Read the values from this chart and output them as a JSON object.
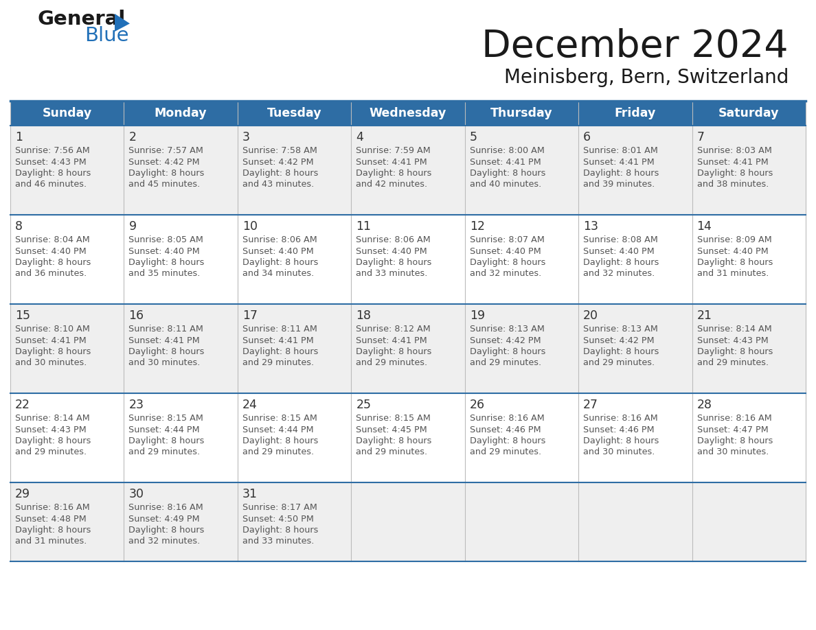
{
  "title": "December 2024",
  "subtitle": "Meinisberg, Bern, Switzerland",
  "header_bg": "#2E6DA4",
  "header_text": "#FFFFFF",
  "weekdays": [
    "Sunday",
    "Monday",
    "Tuesday",
    "Wednesday",
    "Thursday",
    "Friday",
    "Saturday"
  ],
  "row_bg_odd": "#EFEFEF",
  "row_bg_even": "#FFFFFF",
  "row_separator": "#2E6DA4",
  "col_separator": "#AAAAAA",
  "day_number_color": "#333333",
  "cell_text_color": "#555555",
  "logo_black": "#1a1a1a",
  "logo_blue": "#2170B8",
  "days": [
    {
      "day": 1,
      "col": 0,
      "row": 0,
      "sunrise": "7:56 AM",
      "sunset": "4:43 PM",
      "dl_suffix": "46 minutes."
    },
    {
      "day": 2,
      "col": 1,
      "row": 0,
      "sunrise": "7:57 AM",
      "sunset": "4:42 PM",
      "dl_suffix": "45 minutes."
    },
    {
      "day": 3,
      "col": 2,
      "row": 0,
      "sunrise": "7:58 AM",
      "sunset": "4:42 PM",
      "dl_suffix": "43 minutes."
    },
    {
      "day": 4,
      "col": 3,
      "row": 0,
      "sunrise": "7:59 AM",
      "sunset": "4:41 PM",
      "dl_suffix": "42 minutes."
    },
    {
      "day": 5,
      "col": 4,
      "row": 0,
      "sunrise": "8:00 AM",
      "sunset": "4:41 PM",
      "dl_suffix": "40 minutes."
    },
    {
      "day": 6,
      "col": 5,
      "row": 0,
      "sunrise": "8:01 AM",
      "sunset": "4:41 PM",
      "dl_suffix": "39 minutes."
    },
    {
      "day": 7,
      "col": 6,
      "row": 0,
      "sunrise": "8:03 AM",
      "sunset": "4:41 PM",
      "dl_suffix": "38 minutes."
    },
    {
      "day": 8,
      "col": 0,
      "row": 1,
      "sunrise": "8:04 AM",
      "sunset": "4:40 PM",
      "dl_suffix": "36 minutes."
    },
    {
      "day": 9,
      "col": 1,
      "row": 1,
      "sunrise": "8:05 AM",
      "sunset": "4:40 PM",
      "dl_suffix": "35 minutes."
    },
    {
      "day": 10,
      "col": 2,
      "row": 1,
      "sunrise": "8:06 AM",
      "sunset": "4:40 PM",
      "dl_suffix": "34 minutes."
    },
    {
      "day": 11,
      "col": 3,
      "row": 1,
      "sunrise": "8:06 AM",
      "sunset": "4:40 PM",
      "dl_suffix": "33 minutes."
    },
    {
      "day": 12,
      "col": 4,
      "row": 1,
      "sunrise": "8:07 AM",
      "sunset": "4:40 PM",
      "dl_suffix": "32 minutes."
    },
    {
      "day": 13,
      "col": 5,
      "row": 1,
      "sunrise": "8:08 AM",
      "sunset": "4:40 PM",
      "dl_suffix": "32 minutes."
    },
    {
      "day": 14,
      "col": 6,
      "row": 1,
      "sunrise": "8:09 AM",
      "sunset": "4:40 PM",
      "dl_suffix": "31 minutes."
    },
    {
      "day": 15,
      "col": 0,
      "row": 2,
      "sunrise": "8:10 AM",
      "sunset": "4:41 PM",
      "dl_suffix": "30 minutes."
    },
    {
      "day": 16,
      "col": 1,
      "row": 2,
      "sunrise": "8:11 AM",
      "sunset": "4:41 PM",
      "dl_suffix": "30 minutes."
    },
    {
      "day": 17,
      "col": 2,
      "row": 2,
      "sunrise": "8:11 AM",
      "sunset": "4:41 PM",
      "dl_suffix": "29 minutes."
    },
    {
      "day": 18,
      "col": 3,
      "row": 2,
      "sunrise": "8:12 AM",
      "sunset": "4:41 PM",
      "dl_suffix": "29 minutes."
    },
    {
      "day": 19,
      "col": 4,
      "row": 2,
      "sunrise": "8:13 AM",
      "sunset": "4:42 PM",
      "dl_suffix": "29 minutes."
    },
    {
      "day": 20,
      "col": 5,
      "row": 2,
      "sunrise": "8:13 AM",
      "sunset": "4:42 PM",
      "dl_suffix": "29 minutes."
    },
    {
      "day": 21,
      "col": 6,
      "row": 2,
      "sunrise": "8:14 AM",
      "sunset": "4:43 PM",
      "dl_suffix": "29 minutes."
    },
    {
      "day": 22,
      "col": 0,
      "row": 3,
      "sunrise": "8:14 AM",
      "sunset": "4:43 PM",
      "dl_suffix": "29 minutes."
    },
    {
      "day": 23,
      "col": 1,
      "row": 3,
      "sunrise": "8:15 AM",
      "sunset": "4:44 PM",
      "dl_suffix": "29 minutes."
    },
    {
      "day": 24,
      "col": 2,
      "row": 3,
      "sunrise": "8:15 AM",
      "sunset": "4:44 PM",
      "dl_suffix": "29 minutes."
    },
    {
      "day": 25,
      "col": 3,
      "row": 3,
      "sunrise": "8:15 AM",
      "sunset": "4:45 PM",
      "dl_suffix": "29 minutes."
    },
    {
      "day": 26,
      "col": 4,
      "row": 3,
      "sunrise": "8:16 AM",
      "sunset": "4:46 PM",
      "dl_suffix": "29 minutes."
    },
    {
      "day": 27,
      "col": 5,
      "row": 3,
      "sunrise": "8:16 AM",
      "sunset": "4:46 PM",
      "dl_suffix": "30 minutes."
    },
    {
      "day": 28,
      "col": 6,
      "row": 3,
      "sunrise": "8:16 AM",
      "sunset": "4:47 PM",
      "dl_suffix": "30 minutes."
    },
    {
      "day": 29,
      "col": 0,
      "row": 4,
      "sunrise": "8:16 AM",
      "sunset": "4:48 PM",
      "dl_suffix": "31 minutes."
    },
    {
      "day": 30,
      "col": 1,
      "row": 4,
      "sunrise": "8:16 AM",
      "sunset": "4:49 PM",
      "dl_suffix": "32 minutes."
    },
    {
      "day": 31,
      "col": 2,
      "row": 4,
      "sunrise": "8:17 AM",
      "sunset": "4:50 PM",
      "dl_suffix": "33 minutes."
    }
  ]
}
